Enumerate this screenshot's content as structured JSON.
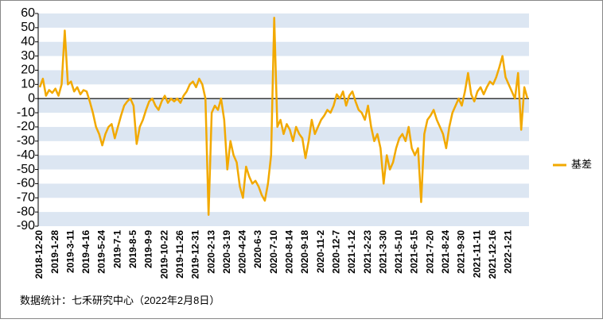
{
  "chart_data": {
    "type": "line",
    "source": "数据统计：七禾研究中心（2022年2月8日）",
    "categories": [
      "2018-12-20",
      null,
      null,
      null,
      null,
      "2019-1-28",
      null,
      null,
      null,
      null,
      "2019-3-11",
      null,
      null,
      null,
      null,
      "2019-4-16",
      null,
      null,
      null,
      null,
      "2019-5-24",
      null,
      null,
      null,
      null,
      "2019-7-1",
      null,
      null,
      null,
      null,
      "2019-8-5",
      null,
      null,
      null,
      null,
      "2019-9-9",
      null,
      null,
      null,
      null,
      "2019-10-22",
      null,
      null,
      null,
      null,
      "2019-11-26",
      null,
      null,
      null,
      null,
      "2019-12-31",
      null,
      null,
      null,
      null,
      "2020-2-13",
      null,
      null,
      null,
      null,
      "2020-3-19",
      null,
      null,
      null,
      null,
      "2020-4-24",
      null,
      null,
      null,
      null,
      "2020-6-3",
      null,
      null,
      null,
      null,
      "2020-7-10",
      null,
      null,
      null,
      null,
      "2020-8-14",
      null,
      null,
      null,
      null,
      "2020-9-18",
      null,
      null,
      null,
      null,
      "2020-11-2",
      null,
      null,
      null,
      null,
      "2020-12-7",
      null,
      null,
      null,
      null,
      "2021-1-12",
      null,
      null,
      null,
      null,
      "2021-2-23",
      null,
      null,
      null,
      null,
      "2021-3-30",
      null,
      null,
      null,
      null,
      "2021-5-10",
      null,
      null,
      null,
      null,
      "2021-6-15",
      null,
      null,
      null,
      null,
      "2021-7-20",
      null,
      null,
      null,
      null,
      "2021-8-24",
      null,
      null,
      null,
      null,
      "2021-9-30",
      null,
      null,
      null,
      null,
      "2021-11-11",
      null,
      null,
      null,
      null,
      "2021-12-16",
      null,
      null,
      null,
      null,
      "2022-1-21",
      null,
      null,
      null,
      null,
      null,
      null
    ],
    "series": [
      {
        "name": "基差",
        "color": "#f2a900",
        "values": [
          8,
          14,
          2,
          6,
          4,
          7,
          2,
          10,
          48,
          10,
          12,
          5,
          8,
          3,
          6,
          5,
          -2,
          -10,
          -20,
          -25,
          -33,
          -25,
          -20,
          -18,
          -28,
          -20,
          -12,
          -5,
          -2,
          0,
          -5,
          -32,
          -20,
          -15,
          -8,
          -2,
          0,
          -5,
          -8,
          -2,
          2,
          -3,
          0,
          -2,
          0,
          -3,
          2,
          5,
          10,
          12,
          8,
          14,
          10,
          0,
          -82,
          -10,
          -5,
          -8,
          0,
          -15,
          -50,
          -30,
          -40,
          -45,
          -62,
          -70,
          -48,
          -55,
          -60,
          -58,
          -62,
          -68,
          -72,
          -60,
          -40,
          57,
          -20,
          -15,
          -25,
          -18,
          -22,
          -30,
          -20,
          -25,
          -28,
          -42,
          -30,
          -15,
          -25,
          -20,
          -15,
          -12,
          -8,
          -10,
          -5,
          3,
          0,
          5,
          -5,
          2,
          5,
          -2,
          -8,
          -10,
          -15,
          -5,
          -20,
          -30,
          -25,
          -35,
          -60,
          -40,
          -50,
          -45,
          -35,
          -28,
          -25,
          -30,
          -20,
          -35,
          -40,
          -35,
          -73,
          -25,
          -15,
          -12,
          -8,
          -15,
          -20,
          -25,
          -35,
          -20,
          -10,
          -5,
          0,
          -5,
          5,
          18,
          3,
          -2,
          5,
          8,
          3,
          8,
          12,
          10,
          15,
          22,
          30,
          15,
          10,
          5,
          0,
          18,
          -22,
          8,
          0
        ]
      }
    ],
    "ylim": [
      -90,
      60
    ],
    "yticks": [
      -90,
      -80,
      -70,
      -60,
      -50,
      -40,
      -30,
      -20,
      -10,
      0,
      10,
      20,
      30,
      40,
      50,
      60
    ],
    "band_color": "#dce6f2",
    "legend": "right"
  }
}
